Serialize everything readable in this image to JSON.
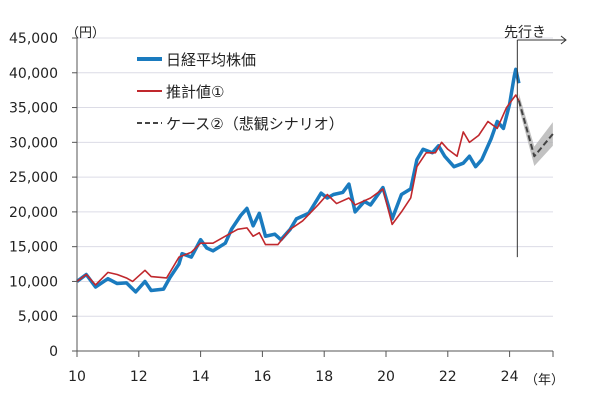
{
  "chart_data": {
    "type": "line",
    "y_unit_label": "（円）",
    "x_unit_label": "（年）",
    "forecast_label": "先行き",
    "ylim": [
      0,
      45000
    ],
    "xlim": [
      2010,
      2025.4
    ],
    "grid": true,
    "legend_placement": "top-left",
    "y_ticks": [
      "0",
      "5,000",
      "10,000",
      "15,000",
      "20,000",
      "25,000",
      "30,000",
      "35,000",
      "40,000",
      "45,000"
    ],
    "y_tick_values": [
      0,
      5000,
      10000,
      15000,
      20000,
      25000,
      30000,
      35000,
      40000,
      45000
    ],
    "x_ticks": [
      "10",
      "12",
      "14",
      "16",
      "18",
      "20",
      "22",
      "24"
    ],
    "x_tick_values": [
      2010,
      2012,
      2014,
      2016,
      2018,
      2020,
      2022,
      2024
    ],
    "forecast_start": 2024.25,
    "series": [
      {
        "name": "日経平均株価",
        "color": "#1a7bbf",
        "style": "solid-thick",
        "x": [
          2010.0,
          2010.3,
          2010.6,
          2011.0,
          2011.3,
          2011.6,
          2011.9,
          2012.2,
          2012.4,
          2012.8,
          2013.0,
          2013.3,
          2013.4,
          2013.7,
          2014.0,
          2014.2,
          2014.4,
          2014.8,
          2015.0,
          2015.3,
          2015.5,
          2015.7,
          2015.9,
          2016.1,
          2016.4,
          2016.6,
          2016.9,
          2017.1,
          2017.5,
          2017.9,
          2018.1,
          2018.3,
          2018.6,
          2018.8,
          2019.0,
          2019.3,
          2019.5,
          2019.9,
          2020.2,
          2020.5,
          2020.8,
          2021.0,
          2021.2,
          2021.5,
          2021.7,
          2021.9,
          2022.2,
          2022.5,
          2022.7,
          2022.9,
          2023.1,
          2023.4,
          2023.6,
          2023.8,
          2024.0,
          2024.15,
          2024.2,
          2024.3
        ],
        "y": [
          10000,
          11000,
          9200,
          10400,
          9700,
          9800,
          8500,
          10000,
          8700,
          8900,
          10500,
          12500,
          14000,
          13500,
          16000,
          14800,
          14400,
          15500,
          17500,
          19500,
          20500,
          18000,
          19800,
          16500,
          16800,
          16000,
          17500,
          19000,
          19800,
          22700,
          22000,
          22500,
          22800,
          24000,
          20000,
          21500,
          21000,
          23500,
          19000,
          22500,
          23300,
          27500,
          29000,
          28500,
          29500,
          28000,
          26500,
          27000,
          28000,
          26500,
          27500,
          30500,
          33000,
          32000,
          35500,
          39500,
          40500,
          38500
        ]
      },
      {
        "name": "推計値①",
        "color": "#c0282d",
        "style": "solid",
        "x": [
          2010.0,
          2010.3,
          2010.6,
          2011.0,
          2011.3,
          2011.6,
          2011.8,
          2012.2,
          2012.4,
          2012.9,
          2013.3,
          2013.7,
          2014.0,
          2014.4,
          2014.8,
          2015.2,
          2015.5,
          2015.7,
          2015.9,
          2016.1,
          2016.5,
          2016.9,
          2017.3,
          2017.8,
          2018.1,
          2018.4,
          2018.8,
          2019.0,
          2019.5,
          2019.9,
          2020.2,
          2020.5,
          2020.8,
          2021.0,
          2021.3,
          2021.6,
          2021.8,
          2022.0,
          2022.3,
          2022.5,
          2022.7,
          2023.0,
          2023.3,
          2023.6,
          2023.9,
          2024.2,
          2024.3
        ],
        "y": [
          10000,
          11000,
          9500,
          11300,
          11000,
          10500,
          10000,
          11600,
          10700,
          10500,
          13500,
          14200,
          15500,
          15500,
          16500,
          17500,
          17700,
          16500,
          17000,
          15300,
          15300,
          17500,
          18700,
          21000,
          22500,
          21200,
          22000,
          21000,
          22000,
          23300,
          18200,
          20000,
          22000,
          26500,
          28500,
          28500,
          30000,
          29000,
          28000,
          31500,
          30000,
          31000,
          33000,
          32000,
          35000,
          36800,
          36000
        ]
      },
      {
        "name": "ケース②（悲観シナリオ）",
        "color": "#444444",
        "style": "dashed",
        "band_color": "#b3b3b3",
        "x": [
          2024.3,
          2024.8,
          2025.4
        ],
        "y": [
          36000,
          28000,
          31200
        ],
        "band": [
          1000,
          1400,
          1700
        ]
      }
    ]
  }
}
